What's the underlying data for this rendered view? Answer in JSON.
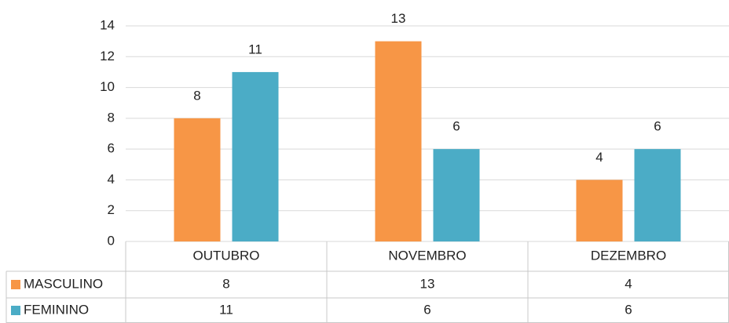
{
  "chart_data": {
    "type": "bar",
    "categories": [
      "OUTUBRO",
      "NOVEMBRO",
      "DEZEMBRO"
    ],
    "series": [
      {
        "name": "MASCULINO",
        "color": "#f79646",
        "values": [
          8,
          13,
          4
        ]
      },
      {
        "name": "FEMININO",
        "color": "#4bacc6",
        "values": [
          11,
          6,
          6
        ]
      }
    ],
    "ylim": [
      0,
      14
    ],
    "yticks": [
      0,
      2,
      4,
      6,
      8,
      10,
      12,
      14
    ],
    "grid": true
  }
}
